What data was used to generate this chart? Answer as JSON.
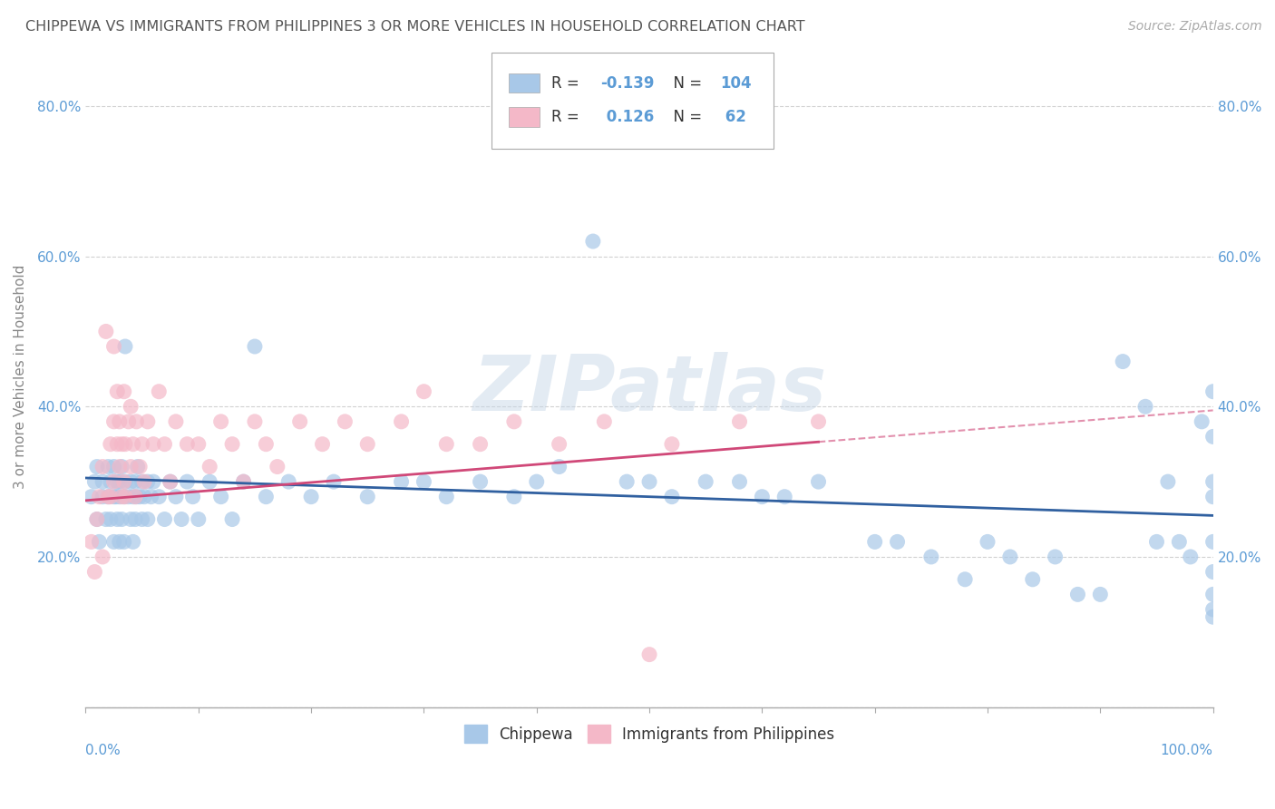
{
  "title": "CHIPPEWA VS IMMIGRANTS FROM PHILIPPINES 3 OR MORE VEHICLES IN HOUSEHOLD CORRELATION CHART",
  "source": "Source: ZipAtlas.com",
  "ylabel": "3 or more Vehicles in Household",
  "xlim": [
    0.0,
    1.0
  ],
  "ylim": [
    0.0,
    0.88
  ],
  "xticks": [
    0.0,
    0.1,
    0.2,
    0.3,
    0.4,
    0.5,
    0.6,
    0.7,
    0.8,
    0.9,
    1.0
  ],
  "yticks": [
    0.0,
    0.2,
    0.4,
    0.6,
    0.8
  ],
  "xlabels_edge": [
    "0.0%",
    "100.0%"
  ],
  "yticklabels": [
    "",
    "20.0%",
    "40.0%",
    "60.0%",
    "80.0%"
  ],
  "right_yticks": [
    0.2,
    0.4,
    0.6,
    0.8
  ],
  "right_yticklabels": [
    "20.0%",
    "40.0%",
    "60.0%",
    "80.0%"
  ],
  "blue_R": -0.139,
  "blue_N": 104,
  "pink_R": 0.126,
  "pink_N": 62,
  "blue_color": "#a8c8e8",
  "pink_color": "#f4b8c8",
  "blue_line_color": "#3060a0",
  "pink_line_color": "#d04878",
  "legend_label_blue": "Chippewa",
  "legend_label_pink": "Immigrants from Philippines",
  "watermark": "ZIPatlas",
  "background_color": "#ffffff",
  "grid_color": "#cccccc",
  "title_color": "#555555",
  "axis_label_color": "#888888",
  "tick_label_color": "#5b9bd5",
  "value_color": "#5b9bd5",
  "label_color": "#333333",
  "blue_scatter_x": [
    0.005,
    0.008,
    0.01,
    0.01,
    0.012,
    0.015,
    0.015,
    0.018,
    0.02,
    0.02,
    0.022,
    0.022,
    0.025,
    0.025,
    0.025,
    0.027,
    0.028,
    0.028,
    0.03,
    0.03,
    0.03,
    0.032,
    0.032,
    0.034,
    0.034,
    0.035,
    0.035,
    0.038,
    0.04,
    0.04,
    0.042,
    0.042,
    0.044,
    0.044,
    0.045,
    0.046,
    0.048,
    0.05,
    0.05,
    0.052,
    0.055,
    0.055,
    0.058,
    0.06,
    0.065,
    0.07,
    0.075,
    0.08,
    0.085,
    0.09,
    0.095,
    0.1,
    0.11,
    0.12,
    0.13,
    0.14,
    0.15,
    0.16,
    0.18,
    0.2,
    0.22,
    0.25,
    0.28,
    0.3,
    0.32,
    0.35,
    0.38,
    0.4,
    0.42,
    0.45,
    0.48,
    0.5,
    0.52,
    0.55,
    0.58,
    0.6,
    0.62,
    0.65,
    0.7,
    0.72,
    0.75,
    0.78,
    0.8,
    0.82,
    0.84,
    0.86,
    0.88,
    0.9,
    0.92,
    0.94,
    0.95,
    0.96,
    0.97,
    0.98,
    0.99,
    1.0,
    1.0,
    1.0,
    1.0,
    1.0,
    1.0,
    1.0,
    1.0,
    1.0
  ],
  "blue_scatter_y": [
    0.28,
    0.3,
    0.25,
    0.32,
    0.22,
    0.28,
    0.3,
    0.25,
    0.28,
    0.32,
    0.25,
    0.3,
    0.28,
    0.22,
    0.32,
    0.28,
    0.25,
    0.3,
    0.28,
    0.22,
    0.3,
    0.25,
    0.32,
    0.28,
    0.22,
    0.48,
    0.3,
    0.28,
    0.25,
    0.3,
    0.28,
    0.22,
    0.3,
    0.25,
    0.28,
    0.32,
    0.28,
    0.3,
    0.25,
    0.28,
    0.3,
    0.25,
    0.28,
    0.3,
    0.28,
    0.25,
    0.3,
    0.28,
    0.25,
    0.3,
    0.28,
    0.25,
    0.3,
    0.28,
    0.25,
    0.3,
    0.48,
    0.28,
    0.3,
    0.28,
    0.3,
    0.28,
    0.3,
    0.3,
    0.28,
    0.3,
    0.28,
    0.3,
    0.32,
    0.62,
    0.3,
    0.3,
    0.28,
    0.3,
    0.3,
    0.28,
    0.28,
    0.3,
    0.22,
    0.22,
    0.2,
    0.17,
    0.22,
    0.2,
    0.17,
    0.2,
    0.15,
    0.15,
    0.46,
    0.4,
    0.22,
    0.3,
    0.22,
    0.2,
    0.38,
    0.42,
    0.36,
    0.3,
    0.28,
    0.22,
    0.18,
    0.15,
    0.13,
    0.12
  ],
  "pink_scatter_x": [
    0.005,
    0.008,
    0.01,
    0.012,
    0.015,
    0.015,
    0.018,
    0.02,
    0.022,
    0.022,
    0.025,
    0.025,
    0.025,
    0.028,
    0.028,
    0.03,
    0.03,
    0.032,
    0.032,
    0.034,
    0.034,
    0.035,
    0.035,
    0.038,
    0.04,
    0.04,
    0.042,
    0.044,
    0.045,
    0.048,
    0.05,
    0.052,
    0.055,
    0.06,
    0.065,
    0.07,
    0.075,
    0.08,
    0.09,
    0.1,
    0.11,
    0.12,
    0.13,
    0.14,
    0.15,
    0.16,
    0.17,
    0.19,
    0.21,
    0.23,
    0.25,
    0.28,
    0.3,
    0.32,
    0.35,
    0.38,
    0.42,
    0.46,
    0.52,
    0.58,
    0.65,
    0.5
  ],
  "pink_scatter_y": [
    0.22,
    0.18,
    0.25,
    0.28,
    0.32,
    0.2,
    0.5,
    0.28,
    0.35,
    0.28,
    0.48,
    0.38,
    0.3,
    0.42,
    0.35,
    0.32,
    0.38,
    0.28,
    0.35,
    0.3,
    0.42,
    0.35,
    0.28,
    0.38,
    0.32,
    0.4,
    0.35,
    0.28,
    0.38,
    0.32,
    0.35,
    0.3,
    0.38,
    0.35,
    0.42,
    0.35,
    0.3,
    0.38,
    0.35,
    0.35,
    0.32,
    0.38,
    0.35,
    0.3,
    0.38,
    0.35,
    0.32,
    0.38,
    0.35,
    0.38,
    0.35,
    0.38,
    0.42,
    0.35,
    0.35,
    0.38,
    0.35,
    0.38,
    0.35,
    0.38,
    0.38,
    0.07
  ]
}
